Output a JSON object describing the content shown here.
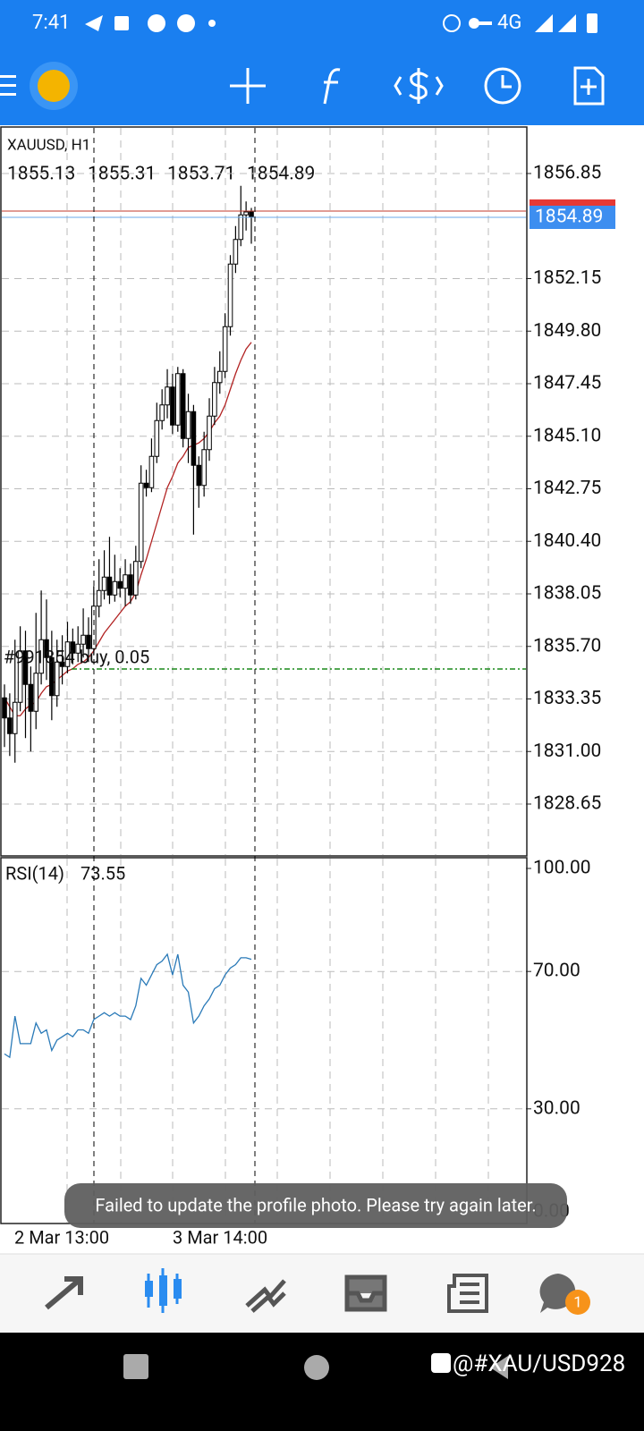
{
  "status_bar": {
    "time": "7:41",
    "network": "4G"
  },
  "chart": {
    "symbol": "XAUUSD, H1",
    "ylim": [
      1826.33,
      1858.93
    ],
    "yticks": [
      1856.85,
      1852.15,
      {
        "value": 1849.8,
        "label": "1849.80"
      },
      1847.45,
      {
        "value": 1845.1,
        "label": "1845.10"
      },
      1842.75,
      {
        "value": 1840.4,
        "label": "1840.40"
      },
      1838.05,
      {
        "value": 1835.7,
        "label": "1835.70"
      },
      1833.35,
      {
        "value": 1831,
        "label": "1831.00"
      },
      1828.65
    ],
    "xtick_labels": [
      "2 Mar 13:00",
      "3 Mar 14:00"
    ],
    "candles": {
      "open": [
        1833.4,
        1832.5,
        1831.8,
        1833.2,
        1835.5,
        1834.0,
        1832.8,
        1834.5,
        1836.0,
        1835.2,
        1833.5,
        1835.0,
        1834.8,
        1835.9,
        1835.4,
        1835.8,
        1836.2,
        1835.6,
        1837.5,
        1838.2,
        1838.8,
        1838.0,
        1838.6,
        1838.3,
        1838.9,
        1838.0,
        1839.5,
        1843.0,
        1842.8,
        1844.2,
        1845.8,
        1846.5,
        1847.3,
        1845.6,
        1847.9,
        1845.0,
        1846.2,
        1843.8,
        1842.9,
        1844.5,
        1846.0,
        1847.5,
        1848.0,
        1850.0,
        1852.8,
        1853.9,
        1855.0,
        1855.13
      ],
      "high": [
        1834.0,
        1833.6,
        1836.0,
        1836.6,
        1836.4,
        1834.8,
        1837.2,
        1838.2,
        1837.8,
        1836.4,
        1836.0,
        1836.2,
        1836.8,
        1836.5,
        1836.6,
        1837.4,
        1837.0,
        1838.4,
        1839.6,
        1840.0,
        1840.6,
        1839.8,
        1839.2,
        1839.6,
        1839.4,
        1840.2,
        1843.8,
        1843.6,
        1845.0,
        1846.6,
        1847.2,
        1848.1,
        1847.9,
        1848.2,
        1848.1,
        1847.0,
        1846.5,
        1844.2,
        1845.3,
        1846.8,
        1848.2,
        1848.9,
        1850.6,
        1853.2,
        1854.5,
        1856.3,
        1855.6,
        1855.31
      ],
      "low": [
        1831.2,
        1830.8,
        1830.5,
        1832.8,
        1831.6,
        1831.0,
        1832.0,
        1834.0,
        1834.2,
        1832.4,
        1833.0,
        1834.0,
        1834.5,
        1834.9,
        1835.0,
        1835.2,
        1835.0,
        1835.3,
        1837.0,
        1837.8,
        1837.6,
        1837.7,
        1837.9,
        1837.5,
        1837.6,
        1837.8,
        1839.2,
        1842.4,
        1842.6,
        1843.9,
        1845.4,
        1845.9,
        1845.2,
        1845.3,
        1844.6,
        1843.9,
        1840.7,
        1841.9,
        1842.4,
        1844.0,
        1845.6,
        1847.0,
        1847.7,
        1849.6,
        1852.4,
        1853.6,
        1854.3,
        1853.71
      ],
      "close": [
        1832.5,
        1831.8,
        1833.2,
        1835.5,
        1834.0,
        1832.8,
        1834.5,
        1836.0,
        1835.2,
        1833.5,
        1835.0,
        1834.8,
        1835.9,
        1835.4,
        1835.8,
        1836.2,
        1835.6,
        1837.5,
        1838.2,
        1838.8,
        1838.0,
        1838.6,
        1838.3,
        1838.9,
        1838.0,
        1839.5,
        1843.0,
        1842.8,
        1844.2,
        1845.8,
        1846.5,
        1847.3,
        1845.6,
        1847.9,
        1845.0,
        1846.2,
        1843.8,
        1842.9,
        1844.5,
        1846.0,
        1847.5,
        1848.0,
        1850.0,
        1852.8,
        1853.9,
        1855.0,
        1855.13,
        1854.89
      ]
    },
    "ma": [
      1833.4,
      1833.0,
      1832.6,
      1832.6,
      1832.9,
      1833.1,
      1833.2,
      1833.6,
      1833.9,
      1834.0,
      1834.2,
      1834.4,
      1834.6,
      1834.7,
      1834.9,
      1835.0,
      1835.2,
      1835.5,
      1835.9,
      1836.3,
      1836.6,
      1836.9,
      1837.2,
      1837.5,
      1837.7,
      1838.1,
      1838.9,
      1839.6,
      1840.4,
      1841.2,
      1842.0,
      1842.8,
      1843.3,
      1843.9,
      1844.2,
      1844.6,
      1844.7,
      1844.8,
      1845.0,
      1845.3,
      1845.7,
      1846.0,
      1846.5,
      1847.2,
      1847.9,
      1848.5,
      1849.0,
      1849.3
    ],
    "ma_color": "#b22222",
    "order": {
      "label": "#991854 buy, 0.05",
      "price": 1834.69
    }
  },
  "rsi": {
    "name": "RSI(14)",
    "color": "#2a7ab8",
    "ylim": [
      0,
      100
    ],
    "yticks": [
      {
        "value": 100,
        "label": "100.00"
      },
      {
        "value": 70,
        "label": "70.00"
      },
      {
        "value": 30,
        "label": "30.00"
      },
      {
        "value": 0,
        "label": "0.00"
      }
    ],
    "values": [
      46,
      45,
      57,
      49,
      49,
      49,
      55,
      52,
      53,
      47,
      50,
      51,
      52,
      51,
      53,
      53,
      52,
      56,
      57,
      58,
      57,
      58,
      57,
      57,
      56,
      60,
      68,
      66,
      69,
      72,
      73,
      75,
      69,
      75,
      66,
      64,
      55,
      57,
      60,
      62,
      65,
      66,
      69,
      71,
      72,
      74,
      74,
      73.55
    ]
  },
  "toast": "Failed to update the profile photo. Please try again later.",
  "nav": {
    "badge": 1
  },
  "watermark": "@#XAU/USD928"
}
